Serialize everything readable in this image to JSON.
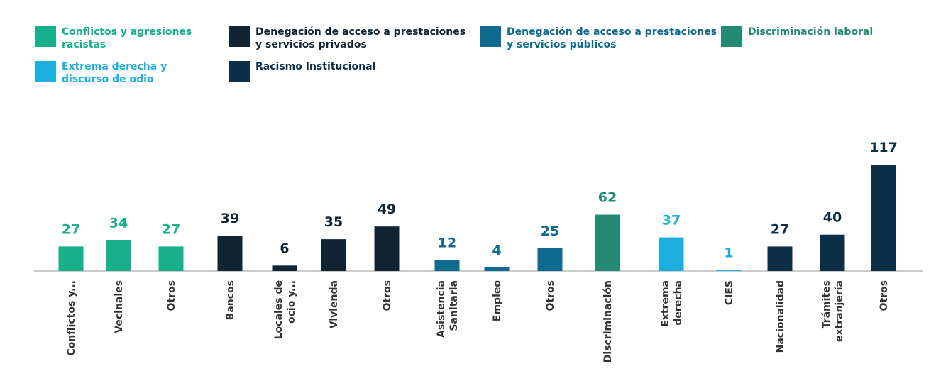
{
  "chart_data": {
    "type": "bar",
    "categories": [
      "Conflictos y...",
      "Vecinales",
      "Otros",
      "Bancos",
      "Locales de\nocio y...",
      "Vivienda",
      "Otros",
      "Asistencia\nSanitaria",
      "Empleo",
      "Otros",
      "Discriminación",
      "Extrema\nderecha",
      "CIES",
      "Nacionalidad",
      "Trámites\nextranjería",
      "Otros"
    ],
    "series": [
      {
        "name": "Conflictos y agresiones\nracistas",
        "color": "#17b08a",
        "values": [
          27,
          34,
          27,
          null,
          null,
          null,
          null,
          null,
          null,
          null,
          null,
          null,
          null,
          null,
          null,
          null
        ]
      },
      {
        "name": "Denegación de acceso a prestaciones\ny servicios privados",
        "color": "#112433",
        "values": [
          null,
          null,
          null,
          39,
          6,
          35,
          49,
          null,
          null,
          null,
          null,
          null,
          null,
          null,
          null,
          null
        ]
      },
      {
        "name": "Denegación de acceso a prestaciones\ny servicios públicos",
        "color": "#0e6a8e",
        "values": [
          null,
          null,
          null,
          null,
          null,
          null,
          null,
          12,
          4,
          25,
          null,
          null,
          null,
          null,
          null,
          null
        ]
      },
      {
        "name": "Discriminación laboral",
        "color": "#258a73",
        "values": [
          null,
          null,
          null,
          null,
          null,
          null,
          null,
          null,
          null,
          null,
          62,
          null,
          null,
          null,
          null,
          null
        ]
      },
      {
        "name": "Extrema derecha y\ndiscurso de odio",
        "color": "#1aafde",
        "values": [
          null,
          null,
          null,
          null,
          null,
          null,
          null,
          null,
          null,
          null,
          null,
          37,
          1,
          null,
          null,
          null
        ]
      },
      {
        "name": "Racismo Institucional",
        "color": "#0d2e47",
        "values": [
          null,
          null,
          null,
          null,
          null,
          null,
          null,
          null,
          null,
          null,
          null,
          null,
          null,
          27,
          40,
          117
        ]
      }
    ]
  }
}
